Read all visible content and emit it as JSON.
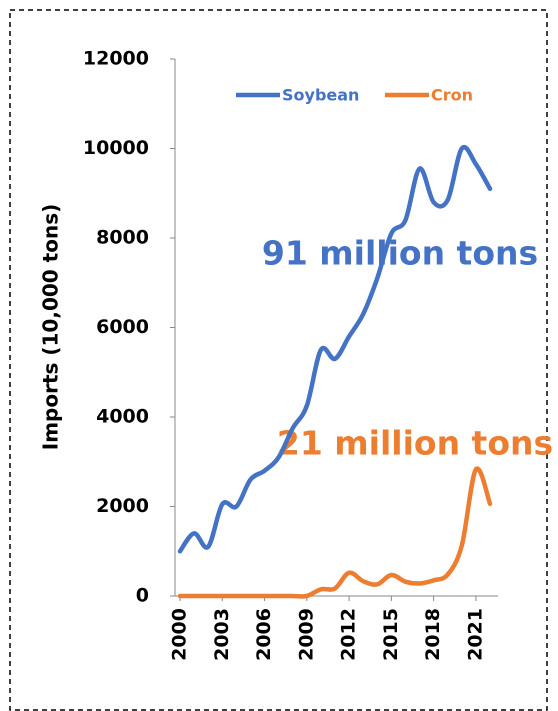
{
  "chart_data": {
    "type": "line",
    "y_label": "Imports (10,000 tons)",
    "x": [
      2000,
      2001,
      2002,
      2003,
      2004,
      2005,
      2006,
      2007,
      2008,
      2009,
      2010,
      2011,
      2012,
      2013,
      2014,
      2015,
      2016,
      2017,
      2018,
      2019,
      2020,
      2021,
      2022
    ],
    "xlim": [
      2000,
      2022
    ],
    "xticks": [
      2000,
      2003,
      2006,
      2009,
      2012,
      2015,
      2018,
      2021
    ],
    "ylim": [
      0,
      12000
    ],
    "yticks": [
      0,
      2000,
      4000,
      6000,
      8000,
      10000,
      12000
    ],
    "grid": false,
    "legend": "top",
    "series": [
      {
        "name": "Soybean",
        "color": "#4472c4",
        "values": [
          1000,
          1400,
          1100,
          2050,
          2000,
          2600,
          2800,
          3100,
          3750,
          4250,
          5500,
          5300,
          5800,
          6300,
          7100,
          8100,
          8400,
          9550,
          8800,
          8850,
          10000,
          9650,
          9100
        ]
      },
      {
        "name": "Cron",
        "color": "#ed7d31",
        "values": [
          0,
          0,
          0,
          0,
          0,
          0,
          0,
          0,
          0,
          0,
          150,
          170,
          520,
          330,
          260,
          470,
          320,
          280,
          350,
          480,
          1130,
          2830,
          2060
        ]
      }
    ],
    "annotations": [
      "91 million tons",
      "21 million tons"
    ]
  }
}
